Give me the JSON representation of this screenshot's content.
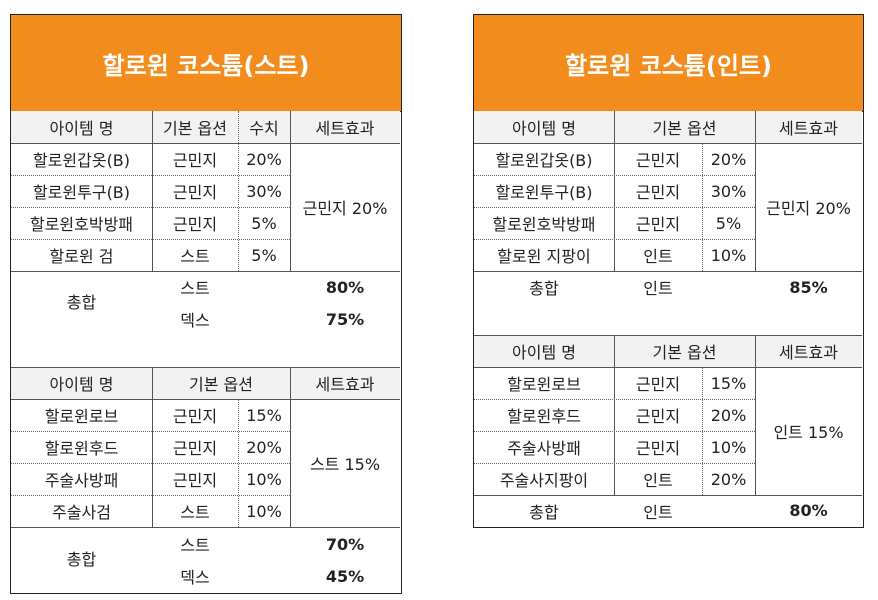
{
  "left": {
    "title": "할로윈 코스튬(스트)",
    "table1": {
      "headers": [
        "아이템 명",
        "기본 옵션",
        "수치",
        "세트효과"
      ],
      "rows": [
        {
          "item": "할로윈갑옷(B)",
          "option": "근민지",
          "value": "20%"
        },
        {
          "item": "할로윈투구(B)",
          "option": "근민지",
          "value": "30%"
        },
        {
          "item": "할로윈호박방패",
          "option": "근민지",
          "value": "5%"
        },
        {
          "item": "할로윈 검",
          "option": "스트",
          "value": "5%"
        }
      ],
      "set_effect": "근민지 20%"
    },
    "total1": {
      "label": "총합",
      "stat1": "스트",
      "val1": "80%",
      "stat2": "덱스",
      "val2": "75%"
    },
    "table2": {
      "headers": [
        "아이템 명",
        "기본 옵션",
        "세트효과"
      ],
      "rows": [
        {
          "item": "할로윈로브",
          "option": "근민지",
          "value": "15%"
        },
        {
          "item": "할로윈후드",
          "option": "근민지",
          "value": "20%"
        },
        {
          "item": "주술사방패",
          "option": "근민지",
          "value": "10%"
        },
        {
          "item": "주술사검",
          "option": "스트",
          "value": "10%"
        }
      ],
      "set_effect": "스트 15%"
    },
    "total2": {
      "label": "총합",
      "stat1": "스트",
      "val1": "70%",
      "stat2": "덱스",
      "val2": "45%"
    }
  },
  "right": {
    "title": "할로윈 코스튬(인트)",
    "table1": {
      "headers": [
        "아이템 명",
        "기본 옵션",
        "세트효과"
      ],
      "rows": [
        {
          "item": "할로윈갑옷(B)",
          "option": "근민지",
          "value": "20%"
        },
        {
          "item": "할로윈투구(B)",
          "option": "근민지",
          "value": "30%"
        },
        {
          "item": "할로윈호박방패",
          "option": "근민지",
          "value": "5%"
        },
        {
          "item": "할로윈 지팡이",
          "option": "인트",
          "value": "10%"
        }
      ],
      "set_effect": "근민지 20%"
    },
    "total1": {
      "label": "총합",
      "stat1": "인트",
      "val1": "85%"
    },
    "table2": {
      "headers": [
        "아이템 명",
        "기본 옵션",
        "세트효과"
      ],
      "rows": [
        {
          "item": "할로윈로브",
          "option": "근민지",
          "value": "15%"
        },
        {
          "item": "할로윈후드",
          "option": "근민지",
          "value": "20%"
        },
        {
          "item": "주술사방패",
          "option": "근민지",
          "value": "10%"
        },
        {
          "item": "주술사지팡이",
          "option": "인트",
          "value": "20%"
        }
      ],
      "set_effect": "인트 15%"
    },
    "total2": {
      "label": "총합",
      "stat1": "인트",
      "val1": "80%"
    }
  }
}
